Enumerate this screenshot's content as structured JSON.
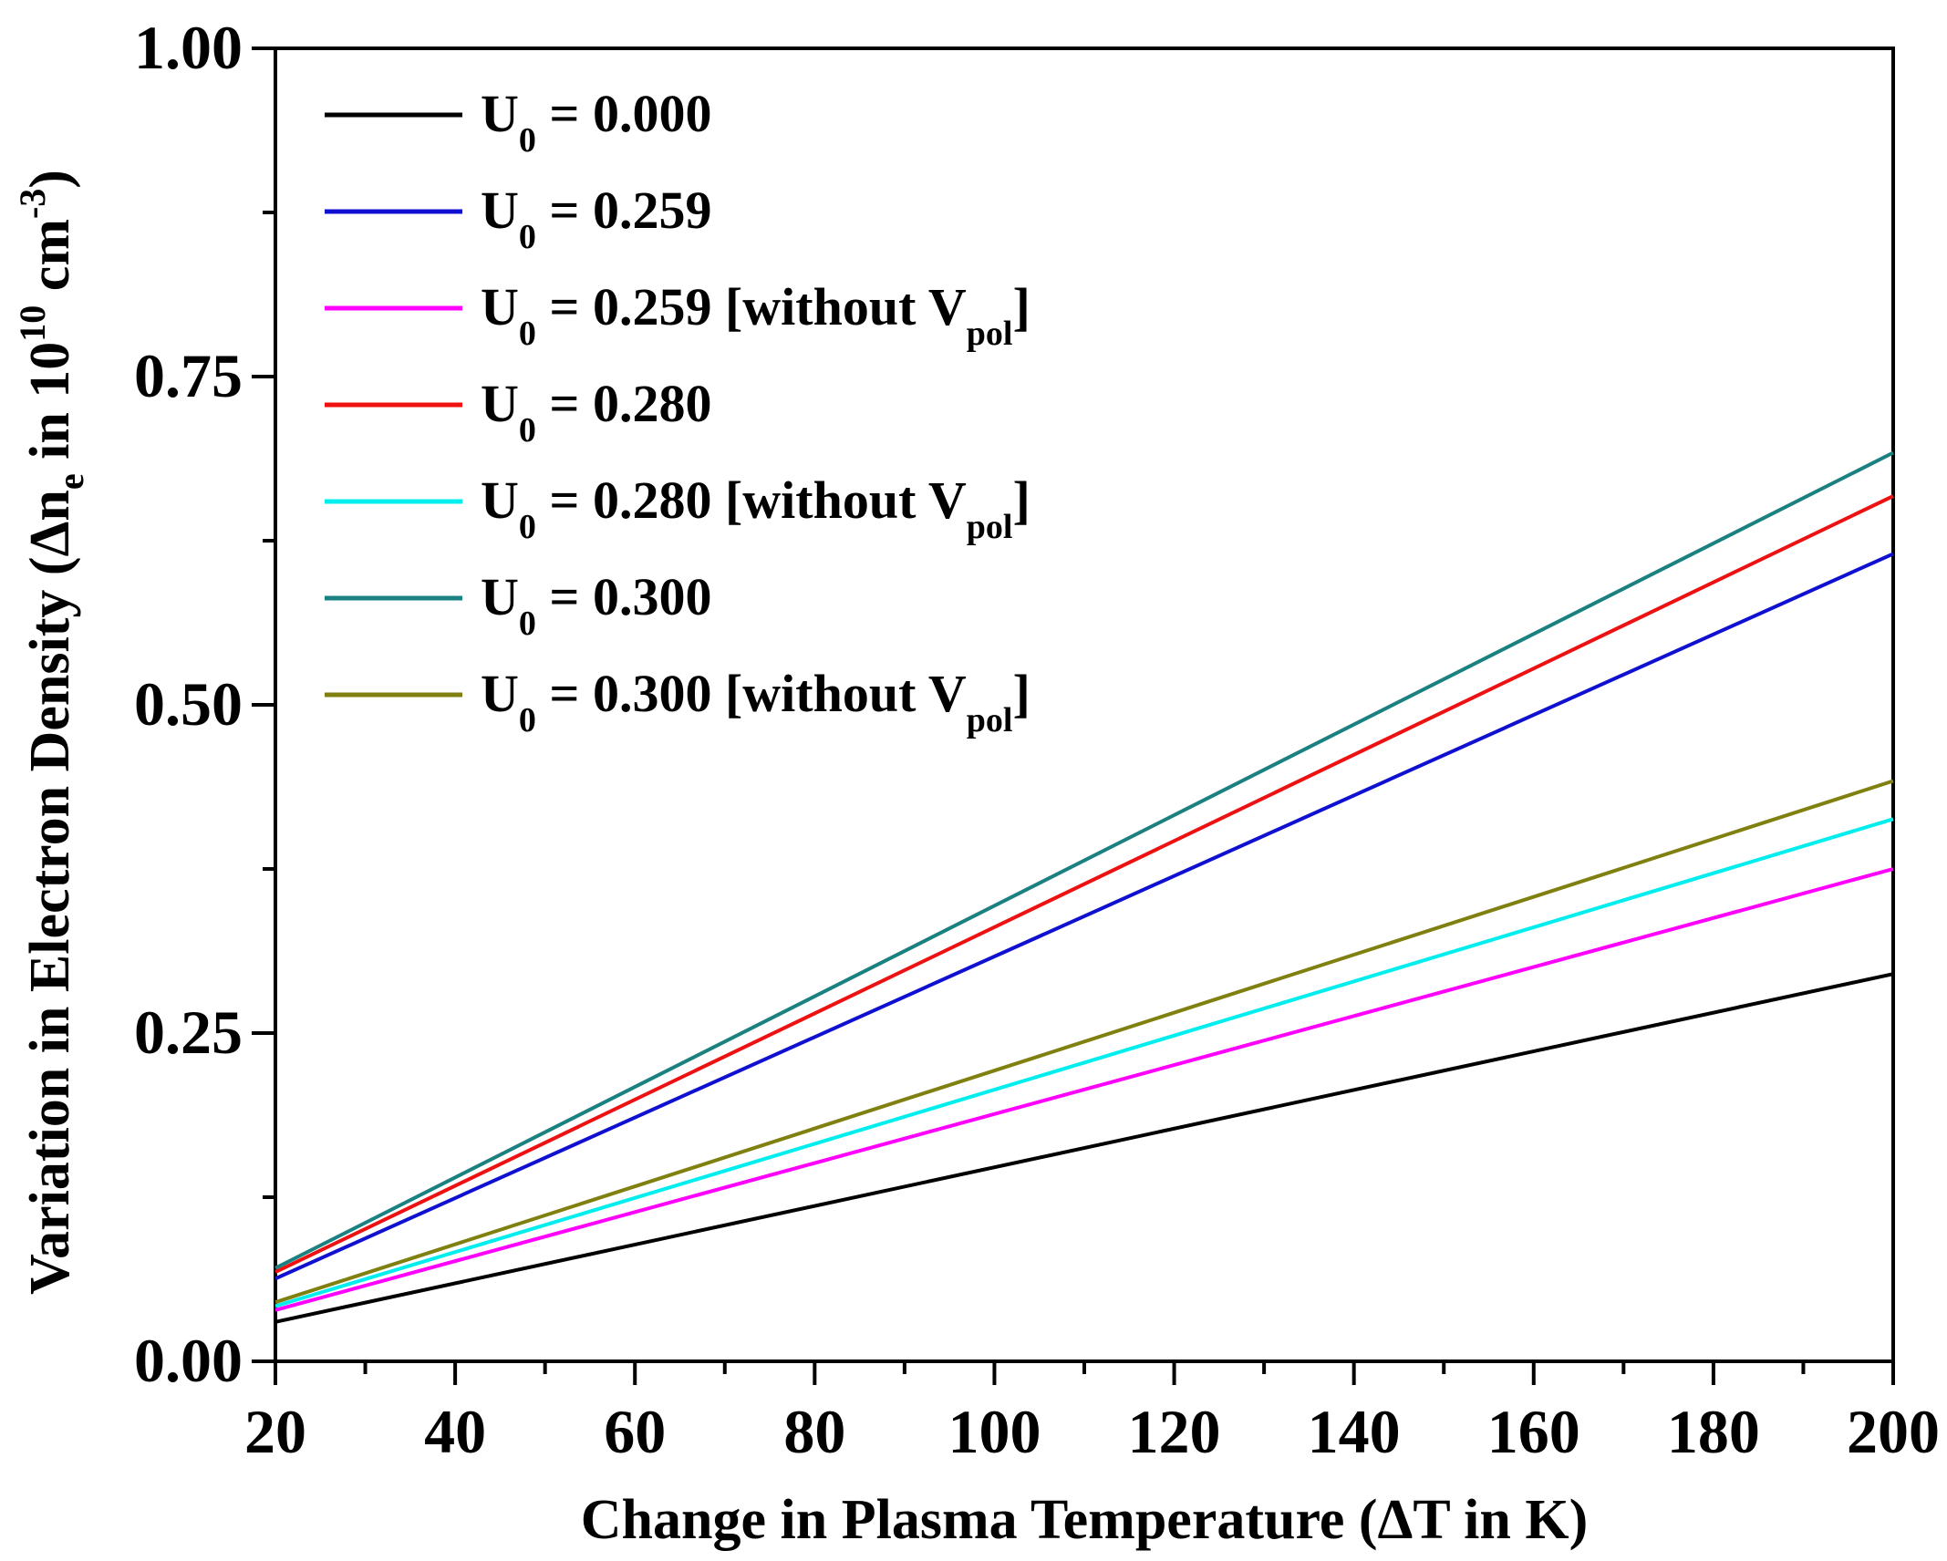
{
  "chart_data": {
    "type": "line",
    "title": "",
    "xlabel": "Change in Plasma Temperature (ΔT in K)",
    "ylabel_parts": {
      "prefix": "Variation in Electron Density (Δn",
      "sub": "e",
      "middle": " in 10",
      "sup1": "10",
      "middle2": " cm",
      "sup2": "-3",
      "suffix": ")"
    },
    "xlim": [
      20,
      200
    ],
    "ylim": [
      0,
      1
    ],
    "x_ticks": [
      20,
      40,
      60,
      80,
      100,
      120,
      140,
      160,
      180,
      200
    ],
    "x_tick_labels": [
      "20",
      "40",
      "60",
      "80",
      "100",
      "120",
      "140",
      "160",
      "180",
      "200"
    ],
    "y_ticks": [
      0,
      0.25,
      0.5,
      0.75,
      1.0
    ],
    "y_tick_labels": [
      "0.00",
      "0.25",
      "0.50",
      "0.75",
      "1.00"
    ],
    "grid": false,
    "legend_position": "top-left",
    "series": [
      {
        "name": "U0 = 0.000",
        "label": {
          "main": "U",
          "sub": "0",
          "rest": " = 0.000",
          "tag": ""
        },
        "color": "#000000",
        "x": [
          20,
          200
        ],
        "y": [
          0.03,
          0.295
        ]
      },
      {
        "name": "U0 = 0.259",
        "label": {
          "main": "U",
          "sub": "0",
          "rest": " = 0.259",
          "tag": ""
        },
        "color": "#1010d0",
        "x": [
          20,
          200
        ],
        "y": [
          0.063,
          0.615
        ]
      },
      {
        "name": "U0 = 0.259 [without Vpol]",
        "label": {
          "main": "U",
          "sub": "0",
          "rest": " = 0.259 [without V",
          "tag": "pol"
        },
        "color": "#ff00ff",
        "x": [
          20,
          200
        ],
        "y": [
          0.039,
          0.375
        ]
      },
      {
        "name": "U0 = 0.280",
        "label": {
          "main": "U",
          "sub": "0",
          "rest": " = 0.280",
          "tag": ""
        },
        "color": "#ee1111",
        "x": [
          20,
          200
        ],
        "y": [
          0.068,
          0.659
        ]
      },
      {
        "name": "U0 = 0.280 [without Vpol]",
        "label": {
          "main": "U",
          "sub": "0",
          "rest": " = 0.280 [without V",
          "tag": "pol"
        },
        "color": "#00eeee",
        "x": [
          20,
          200
        ],
        "y": [
          0.042,
          0.413
        ]
      },
      {
        "name": "U0 = 0.300",
        "label": {
          "main": "U",
          "sub": "0",
          "rest": " = 0.300",
          "tag": ""
        },
        "color": "#1a8080",
        "x": [
          20,
          200
        ],
        "y": [
          0.071,
          0.692
        ]
      },
      {
        "name": "U0 = 0.300 [without Vpol]",
        "label": {
          "main": "U",
          "sub": "0",
          "rest": " = 0.300 [without V",
          "tag": "pol"
        },
        "color": "#808010",
        "x": [
          20,
          200
        ],
        "y": [
          0.045,
          0.442
        ]
      }
    ]
  }
}
